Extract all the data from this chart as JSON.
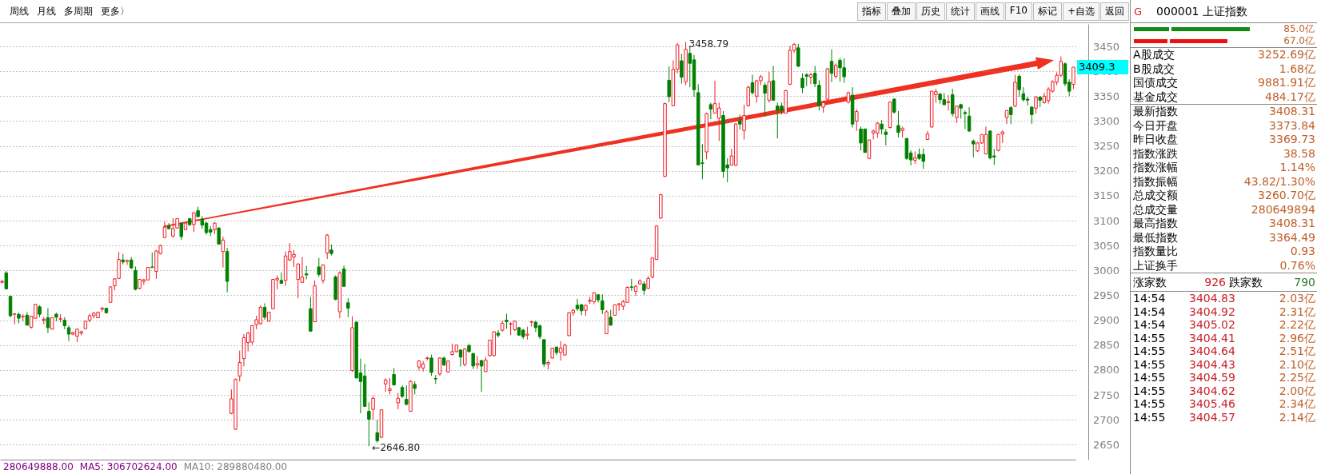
{
  "chart_data": [
    {
      "type": "candlestick",
      "tick_labels": "y",
      "grid": "y",
      "ylim": [
        2620,
        3495
      ],
      "yticks": [
        2650,
        2700,
        2750,
        2800,
        2850,
        2900,
        2950,
        3000,
        3050,
        3100,
        3150,
        3200,
        3250,
        3300,
        3350,
        3400,
        3450
      ],
      "annotations": [
        "周线",
        "月线",
        "多周期",
        "更多〉",
        "指标",
        "叠加",
        "历史",
        "统计",
        "画线",
        "F10",
        "标记",
        "+自选",
        "返回",
        "280649888.00",
        "MA5: 306702624.00",
        "MA10: 289880480.00",
        "3458.79",
        "←2646.80",
        "3409.3"
      ],
      "categories": [
        null,
        null,
        null,
        null,
        null,
        null,
        null,
        null,
        null,
        null,
        null,
        null,
        null,
        null,
        null,
        null,
        null,
        null,
        null,
        null,
        null,
        null,
        null,
        null,
        null,
        null,
        null,
        null,
        null,
        null,
        null,
        null,
        null,
        null,
        null,
        null,
        null,
        null,
        null,
        null,
        null,
        null,
        null,
        null,
        null,
        null,
        null,
        null,
        null,
        null,
        null,
        null,
        null,
        null,
        null,
        null,
        null,
        null,
        null,
        null,
        null,
        null,
        null,
        null,
        null,
        null,
        null,
        null,
        null,
        null,
        null,
        null,
        null,
        null,
        null,
        null,
        null,
        null,
        null,
        null,
        null,
        null,
        null,
        null,
        null,
        null,
        null,
        null,
        null,
        null,
        null,
        null,
        null,
        null,
        null,
        null,
        null,
        null,
        null,
        null,
        null,
        null,
        null,
        null,
        null,
        null,
        null,
        null,
        null,
        null,
        null,
        null,
        null,
        null,
        null,
        null,
        null,
        null,
        null,
        null,
        null,
        null,
        null,
        null,
        null,
        null,
        null,
        null,
        null,
        null,
        null,
        null,
        null,
        null,
        null,
        null,
        null,
        null,
        null,
        null,
        null,
        null,
        null,
        null,
        null,
        null,
        null,
        null,
        null,
        null,
        null,
        null,
        null,
        null,
        null,
        null,
        null,
        null,
        null,
        null,
        null,
        null,
        null,
        null,
        null,
        null,
        null,
        null,
        null,
        null,
        null,
        null,
        null,
        null,
        null,
        null,
        null,
        null,
        null,
        null,
        null,
        null,
        null,
        null,
        null,
        null,
        null,
        null,
        null,
        null,
        null,
        null,
        null,
        null,
        null,
        null,
        null,
        null,
        null,
        null,
        null,
        null,
        null,
        null,
        null,
        null,
        null,
        null,
        null,
        null,
        null,
        null,
        null,
        null,
        null,
        null,
        null,
        null,
        null,
        null,
        null,
        null,
        null,
        null,
        null,
        null,
        null,
        null,
        null,
        null,
        null,
        null,
        null,
        null,
        null,
        null,
        null,
        null,
        null,
        null,
        null,
        null,
        null,
        null,
        null,
        null,
        null,
        null,
        null,
        null,
        null,
        null,
        null,
        null,
        null,
        null,
        null,
        null
      ],
      "ohlc": [
        [
          2976,
          2981,
          2974,
          2978
        ],
        [
          2995,
          2999,
          2962,
          2963
        ],
        [
          2948,
          2948,
          2906,
          2909
        ],
        [
          2912,
          2914,
          2892,
          2913
        ],
        [
          2912,
          2915,
          2894,
          2904
        ],
        [
          2907,
          2912,
          2898,
          2908
        ],
        [
          2910,
          2916,
          2890,
          2890
        ],
        [
          2886,
          2909,
          2883,
          2908
        ],
        [
          2904,
          2933,
          2903,
          2932
        ],
        [
          2927,
          2930,
          2906,
          2912
        ],
        [
          2900,
          2906,
          2892,
          2902
        ],
        [
          2905,
          2924,
          2874,
          2885
        ],
        [
          2882,
          2906,
          2881,
          2905
        ],
        [
          2912,
          2915,
          2898,
          2906
        ],
        [
          2902,
          2912,
          2896,
          2903
        ],
        [
          2900,
          2906,
          2882,
          2889
        ],
        [
          2885,
          2890,
          2858,
          2872
        ],
        [
          2872,
          2877,
          2870,
          2875
        ],
        [
          2868,
          2883,
          2856,
          2882
        ],
        [
          2874,
          2879,
          2870,
          2877
        ],
        [
          2883,
          2899,
          2882,
          2898
        ],
        [
          2900,
          2913,
          2896,
          2909
        ],
        [
          2909,
          2917,
          2904,
          2914
        ],
        [
          2905,
          2917,
          2904,
          2916
        ],
        [
          2922,
          2927,
          2917,
          2924
        ],
        [
          2924,
          2925,
          2913,
          2915
        ],
        [
          2936,
          2968,
          2935,
          2967
        ],
        [
          2969,
          2984,
          2960,
          2983
        ],
        [
          2984,
          3037,
          2983,
          3022
        ],
        [
          3021,
          3033,
          3012,
          3017
        ],
        [
          3018,
          3022,
          3011,
          3020
        ],
        [
          3021,
          3027,
          3003,
          3005
        ],
        [
          3000,
          3008,
          2960,
          2962
        ],
        [
          2964,
          2983,
          2962,
          2982
        ],
        [
          2978,
          2983,
          2971,
          2981
        ],
        [
          2981,
          3007,
          2980,
          3006
        ],
        [
          3007,
          3036,
          3005,
          3006
        ],
        [
          2998,
          3041,
          2983,
          3039
        ],
        [
          3034,
          3052,
          3032,
          3050
        ],
        [
          3066,
          3098,
          3065,
          3087
        ],
        [
          3089,
          3095,
          3082,
          3084
        ],
        [
          3069,
          3105,
          3066,
          3084
        ],
        [
          3085,
          3105,
          3084,
          3104
        ],
        [
          3095,
          3097,
          3061,
          3068
        ],
        [
          3082,
          3096,
          3081,
          3095
        ],
        [
          3104,
          3105,
          3089,
          3092
        ],
        [
          3092,
          3117,
          3077,
          3116
        ],
        [
          3120,
          3128,
          3107,
          3108
        ],
        [
          3103,
          3109,
          3084,
          3091
        ],
        [
          3095,
          3098,
          3072,
          3076
        ],
        [
          3082,
          3089,
          3069,
          3077
        ],
        [
          3082,
          3097,
          3073,
          3095
        ],
        [
          3085,
          3087,
          3052,
          3053
        ],
        [
          3038,
          3068,
          3006,
          3061
        ],
        [
          3038,
          3045,
          2956,
          2978
        ],
        [
          2713,
          2761,
          2711,
          2742
        ],
        [
          2681,
          2783,
          2680,
          2781
        ],
        [
          2788,
          2839,
          2777,
          2815
        ],
        [
          2823,
          2872,
          2807,
          2865
        ],
        [
          2855,
          2877,
          2837,
          2874
        ],
        [
          2856,
          2890,
          2850,
          2889
        ],
        [
          2891,
          2909,
          2882,
          2901
        ],
        [
          2893,
          2930,
          2891,
          2926
        ],
        [
          2926,
          2934,
          2901,
          2906
        ],
        [
          2898,
          2917,
          2897,
          2916
        ],
        [
          2923,
          2983,
          2922,
          2982
        ],
        [
          2981,
          2990,
          2962,
          2984
        ],
        [
          2980,
          2996,
          2973,
          2974
        ],
        [
          2980,
          3038,
          2969,
          3029
        ],
        [
          3021,
          3055,
          3019,
          3038
        ],
        [
          3027,
          3041,
          3007,
          3032
        ],
        [
          2982,
          3014,
          2944,
          3013
        ],
        [
          2976,
          3027,
          2975,
          2987
        ],
        [
          2993,
          3009,
          2982,
          2991
        ],
        [
          2923,
          2947,
          2877,
          2878
        ],
        [
          2897,
          2980,
          2896,
          2969
        ],
        [
          3007,
          3025,
          2987,
          2992
        ],
        [
          2980,
          3012,
          2974,
          3011
        ],
        [
          3035,
          3073,
          3023,
          3071
        ],
        [
          3041,
          3052,
          3030,
          3034
        ],
        [
          2987,
          2990,
          2940,
          2942
        ],
        [
          2917,
          2998,
          2904,
          2995
        ],
        [
          3003,
          3010,
          2967,
          2968
        ],
        [
          2935,
          2944,
          2906,
          2924
        ],
        [
          2799,
          2908,
          2796,
          2885
        ],
        [
          2896,
          2898,
          2783,
          2784
        ],
        [
          2794,
          2823,
          2713,
          2777
        ],
        [
          2788,
          2812,
          2726,
          2727
        ],
        [
          2717,
          2735,
          2646.8,
          2701
        ],
        [
          2721,
          2748,
          2700,
          2743
        ],
        [
          2674,
          2700,
          2654,
          2658
        ],
        [
          2665,
          2721,
          2663,
          2720
        ],
        [
          2772,
          2783,
          2756,
          2780
        ],
        [
          2759,
          2784,
          2751,
          2762
        ],
        [
          2791,
          2804,
          2769,
          2770
        ],
        [
          2734,
          2754,
          2721,
          2743
        ],
        [
          2765,
          2769,
          2744,
          2747
        ],
        [
          2741,
          2769,
          2729,
          2731
        ],
        [
          2717,
          2779,
          2716,
          2777
        ],
        [
          2771,
          2777,
          2751,
          2763
        ],
        [
          2806,
          2820,
          2799,
          2818
        ],
        [
          2804,
          2818,
          2797,
          2812
        ],
        [
          2823,
          2827,
          2819,
          2824
        ],
        [
          2824,
          2831,
          2788,
          2795
        ],
        [
          2783,
          2790,
          2772,
          2782
        ],
        [
          2792,
          2826,
          2788,
          2824
        ],
        [
          2824,
          2827,
          2808,
          2810
        ],
        [
          2796,
          2819,
          2795,
          2818
        ],
        [
          2831,
          2853,
          2829,
          2837
        ],
        [
          2837,
          2851,
          2835,
          2850
        ],
        [
          2840,
          2842,
          2807,
          2826
        ],
        [
          2811,
          2844,
          2807,
          2842
        ],
        [
          2849,
          2853,
          2835,
          2837
        ],
        [
          2833,
          2835,
          2802,
          2808
        ],
        [
          2810,
          2828,
          2802,
          2813
        ],
        [
          2819,
          2820,
          2756,
          2808
        ],
        [
          2797,
          2826,
          2796,
          2820
        ],
        [
          2829,
          2861,
          2827,
          2860
        ],
        [
          2829,
          2877,
          2827,
          2877
        ],
        [
          2874,
          2880,
          2865,
          2870
        ],
        [
          2880,
          2899,
          2877,
          2894
        ],
        [
          2900,
          2913,
          2883,
          2897
        ],
        [
          2892,
          2896,
          2870,
          2893
        ],
        [
          2881,
          2899,
          2878,
          2898
        ],
        [
          2885,
          2887,
          2869,
          2870
        ],
        [
          2880,
          2883,
          2862,
          2867
        ],
        [
          2870,
          2887,
          2861,
          2872
        ],
        [
          2896,
          2899,
          2887,
          2897
        ],
        [
          2896,
          2899,
          2876,
          2885
        ],
        [
          2889,
          2891,
          2862,
          2867
        ],
        [
          2861,
          2862,
          2806,
          2812
        ],
        [
          2812,
          2819,
          2801,
          2815
        ],
        [
          2824,
          2845,
          2823,
          2844
        ],
        [
          2846,
          2847,
          2830,
          2835
        ],
        [
          2835,
          2858,
          2819,
          2844
        ],
        [
          2830,
          2853,
          2829,
          2850
        ],
        [
          2869,
          2916,
          2868,
          2915
        ],
        [
          2915,
          2923,
          2909,
          2920
        ],
        [
          2930,
          2943,
          2919,
          2923
        ],
        [
          2931,
          2933,
          2910,
          2919
        ],
        [
          2920,
          2931,
          2909,
          2930
        ],
        [
          2938,
          2947,
          2933,
          2940
        ],
        [
          2937,
          2956,
          2932,
          2955
        ],
        [
          2951,
          2952,
          2936,
          2941
        ],
        [
          2939,
          2952,
          2912,
          2921
        ],
        [
          2873,
          2920,
          2872,
          2917
        ],
        [
          2906,
          2921,
          2889,
          2890
        ],
        [
          2910,
          2932,
          2909,
          2931
        ],
        [
          2931,
          2935,
          2919,
          2933
        ],
        [
          2928,
          2941,
          2920,
          2937
        ],
        [
          2936,
          2968,
          2935,
          2966
        ],
        [
          2967,
          2983,
          2959,
          2966
        ],
        [
          2958,
          2971,
          2949,
          2968
        ],
        [
          2973,
          2982,
          2971,
          2979
        ],
        [
          2973,
          2978,
          2951,
          2960
        ],
        [
          2964,
          2989,
          2963,
          2984
        ],
        [
          2987,
          3026,
          2984,
          3025
        ],
        [
          3022,
          3091,
          3021,
          3089
        ],
        [
          3105,
          3154,
          3104,
          3152
        ],
        [
          3189,
          3337,
          3188,
          3335
        ],
        [
          3382,
          3410,
          3338,
          3349
        ],
        [
          3331,
          3422,
          3330,
          3404
        ],
        [
          3404,
          3457,
          3396,
          3453
        ],
        [
          3421,
          3435,
          3375,
          3388
        ],
        [
          3379,
          3458.79,
          3372,
          3444
        ],
        [
          3436,
          3451,
          3368,
          3416
        ],
        [
          3423,
          3433,
          3349,
          3363
        ],
        [
          3357,
          3374,
          3211,
          3212
        ],
        [
          3216,
          3254,
          3183,
          3215
        ],
        [
          3238,
          3317,
          3223,
          3315
        ],
        [
          3333,
          3337,
          3304,
          3324
        ],
        [
          3316,
          3381,
          3315,
          3335
        ],
        [
          3306,
          3337,
          3260,
          3326
        ],
        [
          3311,
          3320,
          3186,
          3199
        ],
        [
          3212,
          3225,
          3177,
          3206
        ],
        [
          3212,
          3244,
          3210,
          3230
        ],
        [
          3211,
          3296,
          3210,
          3294
        ],
        [
          3300,
          3313,
          3283,
          3294
        ],
        [
          3281,
          3333,
          3263,
          3311
        ],
        [
          3331,
          3371,
          3329,
          3368
        ],
        [
          3377,
          3393,
          3353,
          3357
        ],
        [
          3350,
          3383,
          3337,
          3381
        ],
        [
          3381,
          3393,
          3372,
          3389
        ],
        [
          3372,
          3377,
          3309,
          3356
        ],
        [
          3342,
          3399,
          3337,
          3379
        ],
        [
          3381,
          3411,
          3341,
          3342
        ],
        [
          3330,
          3337,
          3265,
          3322
        ],
        [
          3330,
          3337,
          3313,
          3321
        ],
        [
          3316,
          3363,
          3315,
          3361
        ],
        [
          3374,
          3451,
          3372,
          3442
        ],
        [
          3442,
          3457,
          3437,
          3454
        ],
        [
          3447,
          3455,
          3409,
          3410
        ],
        [
          3386,
          3396,
          3356,
          3367
        ],
        [
          3393,
          3396,
          3370,
          3390
        ],
        [
          3388,
          3397,
          3374,
          3393
        ],
        [
          3396,
          3411,
          3368,
          3375
        ],
        [
          3372,
          3382,
          3321,
          3331
        ],
        [
          3328,
          3339,
          3317,
          3337
        ],
        [
          3344,
          3407,
          3342,
          3405
        ],
        [
          3420,
          3444,
          3378,
          3396
        ],
        [
          3390,
          3416,
          3385,
          3412
        ],
        [
          3422,
          3427,
          3379,
          3407
        ],
        [
          3407,
          3426,
          3377,
          3389
        ],
        [
          3338,
          3359,
          3335,
          3357
        ],
        [
          3352,
          3368,
          3287,
          3294
        ],
        [
          3300,
          3324,
          3280,
          3319
        ],
        [
          3284,
          3289,
          3241,
          3256
        ],
        [
          3284,
          3285,
          3236,
          3237
        ],
        [
          3225,
          3263,
          3223,
          3262
        ],
        [
          3276,
          3283,
          3263,
          3280
        ],
        [
          3276,
          3298,
          3266,
          3296
        ],
        [
          3294,
          3302,
          3273,
          3284
        ],
        [
          3278,
          3284,
          3251,
          3273
        ],
        [
          3287,
          3339,
          3285,
          3338
        ],
        [
          3344,
          3346,
          3315,
          3318
        ],
        [
          3291,
          3320,
          3267,
          3277
        ],
        [
          3281,
          3289,
          3267,
          3285
        ],
        [
          3265,
          3266,
          3222,
          3225
        ],
        [
          3236,
          3241,
          3211,
          3222
        ],
        [
          3221,
          3239,
          3214,
          3226
        ],
        [
          3233,
          3245,
          3222,
          3225
        ],
        [
          3233,
          3245,
          3204,
          3219
        ],
        [
          3263,
          3280,
          3262,
          3274
        ],
        [
          3288,
          3361,
          3287,
          3360
        ],
        [
          3353,
          3365,
          3337,
          3359
        ],
        [
          3354,
          3357,
          3335,
          3343
        ],
        [
          3343,
          3356,
          3331,
          3333
        ],
        [
          3337,
          3352,
          3321,
          3339
        ],
        [
          3353,
          3365,
          3309,
          3315
        ],
        [
          3307,
          3331,
          3296,
          3330
        ],
        [
          3333,
          3335,
          3305,
          3326
        ],
        [
          3317,
          3321,
          3284,
          3315
        ],
        [
          3310,
          3328,
          3278,
          3280
        ],
        [
          3260,
          3263,
          3227,
          3254
        ],
        [
          3240,
          3258,
          3238,
          3256
        ],
        [
          3256,
          3273,
          3254,
          3273
        ],
        [
          3234,
          3289,
          3233,
          3273
        ],
        [
          3280,
          3281,
          3223,
          3226
        ],
        [
          3230,
          3244,
          3212,
          3228
        ],
        [
          3241,
          3274,
          3239,
          3273
        ],
        [
          3274,
          3281,
          3256,
          3278
        ],
        [
          3307,
          3322,
          3294,
          3321
        ],
        [
          3327,
          3330,
          3294,
          3313
        ],
        [
          3330,
          3393,
          3328,
          3378
        ],
        [
          3390,
          3394,
          3349,
          3363
        ],
        [
          3355,
          3368,
          3339,
          3343
        ],
        [
          3344,
          3349,
          3331,
          3342
        ],
        [
          3328,
          3330,
          3294,
          3313
        ],
        [
          3326,
          3350,
          3315,
          3348
        ],
        [
          3348,
          3350,
          3328,
          3342
        ],
        [
          3337,
          3357,
          3335,
          3350
        ],
        [
          3341,
          3368,
          3335,
          3364
        ],
        [
          3360,
          3382,
          3357,
          3379
        ],
        [
          3378,
          3398,
          3372,
          3392
        ],
        [
          3392,
          3430,
          3388,
          3420
        ],
        [
          3415,
          3418,
          3370,
          3375
        ],
        [
          3378,
          3384,
          3350,
          3360
        ],
        [
          3373.84,
          3408.31,
          3364.49,
          3408.31
        ]
      ]
    },
    {
      "type": "other",
      "title": "000001 上证指数",
      "subtitle": "G",
      "annotations": [
        "85.0亿",
        "67.0亿",
        "A股成交",
        "3252.69亿",
        "B股成交",
        "1.68亿",
        "国债成交",
        "9881.91亿",
        "基金成交",
        "484.17亿",
        "最新指数",
        "3408.31",
        "今日开盘",
        "3373.84",
        "昨日收盘",
        "3369.73",
        "指数涨跌",
        "38.58",
        "指数涨幅",
        "1.14%",
        "指数振幅",
        "43.82/1.30%",
        "总成交额",
        "3260.70亿",
        "总成交量",
        "280649894",
        "最高指数",
        "3408.31",
        "最低指数",
        "3364.49",
        "指数量比",
        "0.93",
        "上证换手",
        "0.76%",
        "涨家数",
        "926",
        "跌家数",
        "790",
        "14:54",
        "3404.83",
        "2.03亿",
        "14:54",
        "3404.92",
        "2.31亿",
        "14:54",
        "3405.02",
        "2.22亿",
        "14:55",
        "3404.41",
        "2.96亿",
        "14:55",
        "3404.64",
        "2.51亿",
        "14:55",
        "3404.43",
        "2.10亿",
        "14:55",
        "3404.59",
        "2.25亿",
        "14:55",
        "3404.62",
        "2.00亿",
        "14:55",
        "3405.46",
        "2.34亿",
        "14:55",
        "3404.57",
        "2.14亿"
      ]
    }
  ]
}
